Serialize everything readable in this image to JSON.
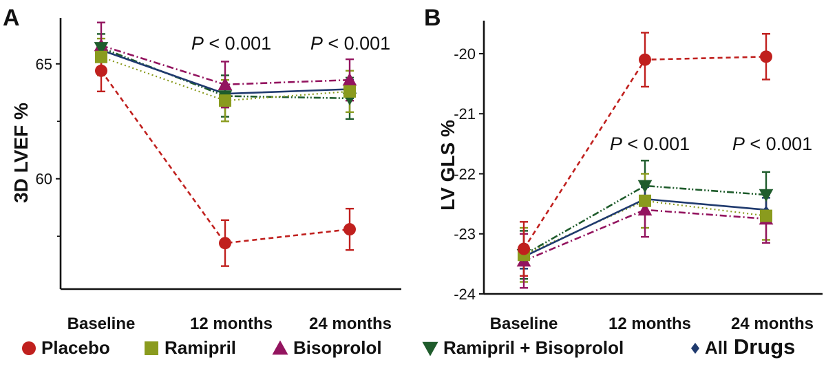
{
  "colors": {
    "placebo": "#c0201e",
    "ramipril": "#8a9b1e",
    "bisoprolol": "#93145f",
    "combo": "#1f5c2c",
    "all": "#1f3a6e",
    "axis": "#111111"
  },
  "legend": [
    {
      "key": "placebo",
      "label": "Placebo",
      "marker": "circle"
    },
    {
      "key": "ramipril",
      "label": "Ramipril",
      "marker": "square"
    },
    {
      "key": "bisoprolol",
      "label": "Bisoprolol",
      "marker": "triangle-up"
    },
    {
      "key": "combo",
      "label": "Ramipril + Bisoprolol",
      "marker": "triangle-down"
    },
    {
      "key": "all",
      "label": "All",
      "label_b": "Drugs",
      "marker": "diamond"
    }
  ],
  "chart_data": [
    {
      "type": "line",
      "panel": "A",
      "ylabel": "3D LVEF %",
      "categories": [
        "Baseline",
        "12 months",
        "24 months"
      ],
      "ylim": [
        55.2,
        67
      ],
      "yticks": [
        60,
        65
      ],
      "annotations": [
        "P < 0.001",
        "P < 0.001"
      ],
      "series": [
        {
          "key": "placebo",
          "name": "Placebo",
          "values": [
            64.7,
            57.2,
            57.8
          ],
          "err": [
            0.9,
            1.0,
            0.9
          ]
        },
        {
          "key": "ramipril",
          "name": "Ramipril",
          "values": [
            65.3,
            63.4,
            63.8
          ],
          "err": [
            0.8,
            0.9,
            0.9
          ]
        },
        {
          "key": "bisoprolol",
          "name": "Bisoprolol",
          "values": [
            65.8,
            64.1,
            64.3
          ],
          "err": [
            1.0,
            1.0,
            0.9
          ]
        },
        {
          "key": "combo",
          "name": "Ramipril + Bisoprolol",
          "values": [
            65.7,
            63.6,
            63.5
          ],
          "err": [
            0.6,
            0.9,
            0.9
          ]
        },
        {
          "key": "all",
          "name": "All Drugs",
          "values": [
            65.6,
            63.7,
            63.9
          ],
          "err": [
            0.3,
            0.4,
            0.4
          ]
        }
      ]
    },
    {
      "type": "line",
      "panel": "B",
      "ylabel": "LV GLS %",
      "categories": [
        "Baseline",
        "12 months",
        "24 months"
      ],
      "ylim": [
        -24,
        -19.45
      ],
      "yticks": [
        -24,
        -23,
        -22,
        -21,
        -20
      ],
      "annotations": [
        "P < 0.001",
        "P < 0.001"
      ],
      "series": [
        {
          "key": "placebo",
          "name": "Placebo",
          "values": [
            -23.25,
            -20.1,
            -20.05
          ],
          "err": [
            0.45,
            0.45,
            0.38
          ]
        },
        {
          "key": "ramipril",
          "name": "Ramipril",
          "values": [
            -23.35,
            -22.45,
            -22.7
          ],
          "err": [
            0.45,
            0.45,
            0.4
          ]
        },
        {
          "key": "bisoprolol",
          "name": "Bisoprolol",
          "values": [
            -23.45,
            -22.6,
            -22.75
          ],
          "err": [
            0.45,
            0.45,
            0.4
          ]
        },
        {
          "key": "combo",
          "name": "Ramipril + Bisoprolol",
          "values": [
            -23.35,
            -22.2,
            -22.35
          ],
          "err": [
            0.4,
            0.42,
            0.38
          ]
        },
        {
          "key": "all",
          "name": "All Drugs",
          "values": [
            -23.38,
            -22.42,
            -22.6
          ],
          "err": [
            0.2,
            0.2,
            0.2
          ]
        }
      ]
    }
  ]
}
